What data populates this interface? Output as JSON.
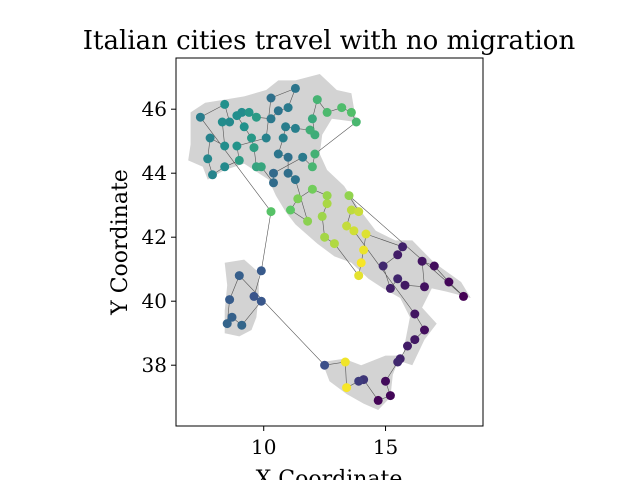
{
  "chart_data": {
    "type": "scatter",
    "title": "Italian cities travel with no migration",
    "xlabel": "X Coordinate",
    "ylabel": "Y Coordinate",
    "xlim": [
      6.4,
      19.0
    ],
    "ylim": [
      36.1,
      47.6
    ],
    "xticks": [
      10,
      15
    ],
    "yticks": [
      38,
      40,
      42,
      44,
      46
    ],
    "grid": false,
    "legend": "none",
    "colormap": "viridis",
    "land_color": "#d3d3d3",
    "route_color": "#555555",
    "land": [
      [
        [
          7.0,
          45.9
        ],
        [
          7.6,
          46.2
        ],
        [
          8.4,
          46.3
        ],
        [
          9.2,
          46.4
        ],
        [
          10.1,
          46.6
        ],
        [
          10.6,
          46.9
        ],
        [
          11.3,
          46.9
        ],
        [
          12.3,
          47.1
        ],
        [
          13.0,
          46.6
        ],
        [
          13.6,
          46.5
        ],
        [
          13.8,
          45.6
        ],
        [
          12.8,
          45.7
        ],
        [
          12.4,
          45.2
        ],
        [
          12.3,
          44.6
        ],
        [
          12.6,
          44.1
        ],
        [
          13.3,
          43.6
        ],
        [
          13.9,
          42.9
        ],
        [
          14.6,
          42.2
        ],
        [
          15.4,
          41.9
        ],
        [
          16.1,
          41.9
        ],
        [
          17.0,
          41.2
        ],
        [
          18.1,
          40.6
        ],
        [
          18.5,
          40.1
        ],
        [
          17.5,
          40.3
        ],
        [
          16.9,
          40.4
        ],
        [
          16.5,
          39.8
        ],
        [
          17.1,
          39.3
        ],
        [
          16.6,
          38.8
        ],
        [
          16.1,
          38.0
        ],
        [
          15.7,
          38.1
        ],
        [
          15.8,
          38.7
        ],
        [
          16.0,
          39.5
        ],
        [
          15.6,
          40.1
        ],
        [
          14.9,
          40.4
        ],
        [
          14.3,
          40.7
        ],
        [
          13.6,
          41.2
        ],
        [
          12.9,
          41.4
        ],
        [
          12.2,
          41.8
        ],
        [
          11.3,
          42.4
        ],
        [
          10.9,
          42.8
        ],
        [
          10.5,
          43.3
        ],
        [
          10.2,
          43.8
        ],
        [
          9.8,
          44.0
        ],
        [
          9.2,
          44.3
        ],
        [
          8.4,
          44.1
        ],
        [
          7.7,
          43.8
        ],
        [
          7.5,
          44.2
        ],
        [
          6.9,
          44.4
        ],
        [
          7.0,
          44.9
        ]
      ],
      [
        [
          8.4,
          41.2
        ],
        [
          9.2,
          41.3
        ],
        [
          9.8,
          40.9
        ],
        [
          9.8,
          40.2
        ],
        [
          9.7,
          39.5
        ],
        [
          9.5,
          39.1
        ],
        [
          9.0,
          38.9
        ],
        [
          8.4,
          39.0
        ],
        [
          8.4,
          39.7
        ],
        [
          8.5,
          40.5
        ]
      ],
      [
        [
          12.4,
          38.1
        ],
        [
          13.3,
          38.2
        ],
        [
          14.0,
          38.0
        ],
        [
          15.0,
          38.3
        ],
        [
          15.6,
          38.3
        ],
        [
          15.3,
          37.7
        ],
        [
          15.2,
          37.0
        ],
        [
          14.7,
          36.6
        ],
        [
          14.1,
          36.8
        ],
        [
          13.4,
          37.1
        ],
        [
          12.7,
          37.5
        ]
      ]
    ],
    "points": [
      {
        "x": 18.2,
        "y": 40.15,
        "c": 0.0
      },
      {
        "x": 17.6,
        "y": 40.6,
        "c": 0.02
      },
      {
        "x": 17.0,
        "y": 41.1,
        "c": 0.04
      },
      {
        "x": 16.5,
        "y": 41.25,
        "c": 0.06
      },
      {
        "x": 15.5,
        "y": 41.45,
        "c": 0.08
      },
      {
        "x": 15.7,
        "y": 41.7,
        "c": 0.1
      },
      {
        "x": 14.9,
        "y": 41.1,
        "c": 0.12
      },
      {
        "x": 15.5,
        "y": 40.7,
        "c": 0.11
      },
      {
        "x": 15.2,
        "y": 40.4,
        "c": 0.09
      },
      {
        "x": 15.8,
        "y": 40.5,
        "c": 0.07
      },
      {
        "x": 16.6,
        "y": 40.45,
        "c": 0.05
      },
      {
        "x": 16.2,
        "y": 39.6,
        "c": 0.06
      },
      {
        "x": 16.6,
        "y": 39.1,
        "c": 0.04
      },
      {
        "x": 16.2,
        "y": 38.8,
        "c": 0.07
      },
      {
        "x": 15.9,
        "y": 38.6,
        "c": 0.08
      },
      {
        "x": 15.6,
        "y": 38.2,
        "c": 0.1
      },
      {
        "x": 15.5,
        "y": 38.1,
        "c": 0.12
      },
      {
        "x": 15.0,
        "y": 37.5,
        "c": 0.03
      },
      {
        "x": 15.2,
        "y": 37.05,
        "c": 0.02
      },
      {
        "x": 14.7,
        "y": 36.9,
        "c": 0.01
      },
      {
        "x": 14.1,
        "y": 37.55,
        "c": 0.16
      },
      {
        "x": 13.9,
        "y": 37.5,
        "c": 0.18
      },
      {
        "x": 13.4,
        "y": 37.3,
        "c": 0.99
      },
      {
        "x": 13.35,
        "y": 38.1,
        "c": 0.98
      },
      {
        "x": 12.5,
        "y": 38.0,
        "c": 0.24
      },
      {
        "x": 9.9,
        "y": 40.95,
        "c": 0.28
      },
      {
        "x": 9.0,
        "y": 40.8,
        "c": 0.3
      },
      {
        "x": 9.6,
        "y": 40.15,
        "c": 0.26
      },
      {
        "x": 9.9,
        "y": 40.0,
        "c": 0.27
      },
      {
        "x": 8.6,
        "y": 40.05,
        "c": 0.29
      },
      {
        "x": 8.7,
        "y": 39.5,
        "c": 0.31
      },
      {
        "x": 8.5,
        "y": 39.3,
        "c": 0.32
      },
      {
        "x": 9.1,
        "y": 39.25,
        "c": 0.33
      },
      {
        "x": 10.3,
        "y": 42.8,
        "c": 0.72
      },
      {
        "x": 11.1,
        "y": 42.85,
        "c": 0.74
      },
      {
        "x": 12.0,
        "y": 43.5,
        "c": 0.78
      },
      {
        "x": 11.4,
        "y": 43.2,
        "c": 0.8
      },
      {
        "x": 11.8,
        "y": 42.5,
        "c": 0.82
      },
      {
        "x": 12.4,
        "y": 42.65,
        "c": 0.85
      },
      {
        "x": 12.5,
        "y": 42.0,
        "c": 0.86
      },
      {
        "x": 12.9,
        "y": 41.8,
        "c": 0.88
      },
      {
        "x": 12.6,
        "y": 43.05,
        "c": 0.87
      },
      {
        "x": 12.6,
        "y": 43.3,
        "c": 0.84
      },
      {
        "x": 13.5,
        "y": 43.3,
        "c": 0.83
      },
      {
        "x": 13.6,
        "y": 42.85,
        "c": 0.9
      },
      {
        "x": 13.9,
        "y": 42.8,
        "c": 0.92
      },
      {
        "x": 13.4,
        "y": 42.35,
        "c": 0.91
      },
      {
        "x": 13.7,
        "y": 42.2,
        "c": 0.93
      },
      {
        "x": 14.2,
        "y": 42.1,
        "c": 0.95
      },
      {
        "x": 14.1,
        "y": 41.6,
        "c": 0.97
      },
      {
        "x": 14.0,
        "y": 41.2,
        "c": 0.99
      },
      {
        "x": 13.9,
        "y": 40.8,
        "c": 0.96
      },
      {
        "x": 11.0,
        "y": 44.0,
        "c": 0.36
      },
      {
        "x": 11.3,
        "y": 43.8,
        "c": 0.38
      },
      {
        "x": 10.4,
        "y": 44.0,
        "c": 0.34
      },
      {
        "x": 10.4,
        "y": 43.7,
        "c": 0.35
      },
      {
        "x": 11.0,
        "y": 44.5,
        "c": 0.37
      },
      {
        "x": 10.6,
        "y": 44.6,
        "c": 0.39
      },
      {
        "x": 11.6,
        "y": 44.5,
        "c": 0.41
      },
      {
        "x": 12.0,
        "y": 44.2,
        "c": 0.66
      },
      {
        "x": 12.1,
        "y": 44.6,
        "c": 0.64
      },
      {
        "x": 12.1,
        "y": 45.2,
        "c": 0.62
      },
      {
        "x": 12.0,
        "y": 45.7,
        "c": 0.6
      },
      {
        "x": 12.2,
        "y": 46.3,
        "c": 0.65
      },
      {
        "x": 12.6,
        "y": 45.9,
        "c": 0.68
      },
      {
        "x": 13.2,
        "y": 46.05,
        "c": 0.69
      },
      {
        "x": 13.6,
        "y": 45.9,
        "c": 0.7
      },
      {
        "x": 13.8,
        "y": 45.6,
        "c": 0.67
      },
      {
        "x": 11.9,
        "y": 45.35,
        "c": 0.63
      },
      {
        "x": 11.3,
        "y": 45.4,
        "c": 0.43
      },
      {
        "x": 11.0,
        "y": 46.05,
        "c": 0.41
      },
      {
        "x": 11.3,
        "y": 46.65,
        "c": 0.39
      },
      {
        "x": 10.3,
        "y": 46.35,
        "c": 0.37
      },
      {
        "x": 10.6,
        "y": 45.95,
        "c": 0.38
      },
      {
        "x": 10.3,
        "y": 45.7,
        "c": 0.4
      },
      {
        "x": 10.9,
        "y": 45.45,
        "c": 0.42
      },
      {
        "x": 10.8,
        "y": 45.1,
        "c": 0.43
      },
      {
        "x": 10.1,
        "y": 45.1,
        "c": 0.44
      },
      {
        "x": 9.2,
        "y": 45.45,
        "c": 0.5
      },
      {
        "x": 9.1,
        "y": 45.9,
        "c": 0.48
      },
      {
        "x": 9.4,
        "y": 45.9,
        "c": 0.52
      },
      {
        "x": 9.7,
        "y": 45.75,
        "c": 0.54
      },
      {
        "x": 9.5,
        "y": 45.1,
        "c": 0.53
      },
      {
        "x": 9.6,
        "y": 44.8,
        "c": 0.56
      },
      {
        "x": 9.7,
        "y": 44.2,
        "c": 0.58
      },
      {
        "x": 9.9,
        "y": 44.2,
        "c": 0.59
      },
      {
        "x": 9.0,
        "y": 44.4,
        "c": 0.55
      },
      {
        "x": 8.9,
        "y": 44.85,
        "c": 0.51
      },
      {
        "x": 8.4,
        "y": 44.85,
        "c": 0.49
      },
      {
        "x": 8.4,
        "y": 44.2,
        "c": 0.47
      },
      {
        "x": 7.9,
        "y": 43.95,
        "c": 0.45
      },
      {
        "x": 7.7,
        "y": 44.45,
        "c": 0.46
      },
      {
        "x": 7.8,
        "y": 45.1,
        "c": 0.44
      },
      {
        "x": 7.4,
        "y": 45.75,
        "c": 0.42
      },
      {
        "x": 8.3,
        "y": 45.6,
        "c": 0.48
      },
      {
        "x": 8.6,
        "y": 45.6,
        "c": 0.47
      },
      {
        "x": 8.9,
        "y": 45.8,
        "c": 0.49
      },
      {
        "x": 8.4,
        "y": 46.15,
        "c": 0.5
      }
    ]
  }
}
